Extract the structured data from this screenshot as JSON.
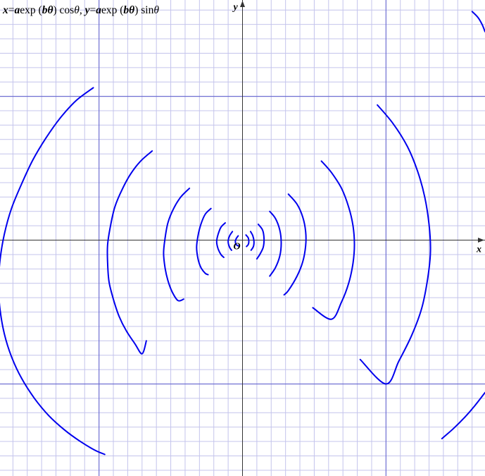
{
  "formula": {
    "x_var": "x",
    "eq": "=",
    "a1": "a",
    "exp1": "exp",
    "lp1": " (",
    "btheta1": "bθ",
    "rp1": ")",
    "cos": " cos",
    "theta1": "θ",
    "sep": ",",
    "y_var": "y",
    "a2": "a",
    "exp2": "exp",
    "lp2": " (",
    "btheta2": "bθ",
    "rp2": ")",
    "sin": " sin",
    "theta2": "θ"
  },
  "chart_data": {
    "type": "line",
    "title": "x= a exp (bθ) cos θ, y= a exp (bθ) sin θ",
    "xlabel": "x",
    "ylabel": "y",
    "origin_label": "O",
    "xlim": [
      -8.45,
      8.45
    ],
    "ylim": [
      -8.2,
      8.35
    ],
    "grid": true,
    "grid_minor_step": 0.5,
    "grid_major_step": 5,
    "line_color": "#0000ee",
    "grid_minor_color": "#c4c4ec",
    "grid_major_color": "#6f6fd2",
    "axis_color": "#333333",
    "note": "",
    "series": [
      {
        "arcs": [
          {
            "x": [
              -5.2,
              -5.8,
              -6.35,
              -6.85,
              -7.3,
              -7.7,
              -8.05,
              -8.3,
              -8.45,
              -8.5,
              -8.45,
              -8.3,
              -8.05,
              -7.7,
              -7.25,
              -6.75,
              -6.2,
              -5.65,
              -5.15,
              -4.8
            ],
            "y": [
              5.3,
              4.85,
              4.25,
              3.55,
              2.8,
              1.95,
              1.1,
              0.2,
              -0.7,
              -1.55,
              -2.4,
              -3.25,
              -4.05,
              -4.8,
              -5.5,
              -6.1,
              -6.6,
              -7.0,
              -7.3,
              -7.45
            ]
          },
          {
            "x": [
              -3.15,
              -3.55,
              -3.9,
              -4.2,
              -4.45,
              -4.6,
              -4.7,
              -4.7,
              -4.65,
              -4.5,
              -4.3,
              -4.05,
              -3.75,
              -3.5,
              -3.35
            ],
            "y": [
              3.1,
              2.75,
              2.3,
              1.75,
              1.15,
              0.5,
              -0.15,
              -0.8,
              -1.45,
              -2.05,
              -2.65,
              -3.15,
              -3.6,
              -3.95,
              -3.5
            ]
          },
          {
            "x": [
              -1.85,
              -2.15,
              -2.4,
              -2.6,
              -2.7,
              -2.75,
              -2.7,
              -2.6,
              -2.45,
              -2.25,
              -2.05
            ],
            "y": [
              1.8,
              1.5,
              1.1,
              0.6,
              0.05,
              -0.45,
              -0.95,
              -1.4,
              -1.8,
              -2.1,
              -2.05
            ]
          },
          {
            "x": [
              -1.1,
              -1.3,
              -1.45,
              -1.55,
              -1.6,
              -1.55,
              -1.45,
              -1.3,
              -1.2
            ],
            "y": [
              1.1,
              0.9,
              0.55,
              0.15,
              -0.25,
              -0.65,
              -0.95,
              -1.15,
              -1.2
            ]
          },
          {
            "x": [
              -0.6,
              -0.75,
              -0.85,
              -0.9,
              -0.85,
              -0.75,
              -0.65
            ],
            "y": [
              0.6,
              0.45,
              0.2,
              -0.05,
              -0.3,
              -0.5,
              -0.6
            ]
          },
          {
            "x": [
              -0.35,
              -0.45,
              -0.5,
              -0.45,
              -0.38
            ],
            "y": [
              0.3,
              0.15,
              -0.05,
              -0.25,
              -0.35
            ]
          },
          {
            "x": [
              -0.15,
              -0.22,
              -0.25,
              -0.22,
              -0.15
            ],
            "y": [
              0.15,
              0.05,
              -0.05,
              -0.15,
              -0.2
            ]
          },
          {
            "x": [
              0.12,
              0.2,
              0.22,
              0.2,
              0.14
            ],
            "y": [
              0.18,
              0.08,
              -0.05,
              -0.15,
              -0.22
            ]
          },
          {
            "x": [
              0.28,
              0.36,
              0.4,
              0.38,
              0.3
            ],
            "y": [
              0.3,
              0.15,
              -0.05,
              -0.22,
              -0.35
            ]
          },
          {
            "x": [
              0.55,
              0.7,
              0.75,
              0.72,
              0.6,
              0.5
            ],
            "y": [
              0.55,
              0.35,
              0.05,
              -0.25,
              -0.5,
              -0.65
            ]
          },
          {
            "x": [
              0.95,
              1.15,
              1.3,
              1.35,
              1.3,
              1.15,
              0.95
            ],
            "y": [
              1.0,
              0.75,
              0.35,
              -0.1,
              -0.55,
              -0.95,
              -1.25
            ]
          },
          {
            "x": [
              1.6,
              1.9,
              2.1,
              2.2,
              2.2,
              2.1,
              1.9,
              1.6,
              1.45
            ],
            "y": [
              1.6,
              1.25,
              0.8,
              0.3,
              -0.2,
              -0.75,
              -1.25,
              -1.75,
              -1.9
            ]
          },
          {
            "x": [
              2.75,
              3.1,
              3.45,
              3.7,
              3.85,
              3.9,
              3.85,
              3.7,
              3.45,
              3.1,
              2.45
            ],
            "y": [
              2.75,
              2.35,
              1.8,
              1.15,
              0.5,
              -0.15,
              -0.8,
              -1.5,
              -2.15,
              -2.75,
              -2.35
            ]
          },
          {
            "x": [
              4.7,
              5.25,
              5.75,
              6.1,
              6.35,
              6.5,
              6.55,
              6.45,
              6.25,
              5.9,
              5.45,
              5.0,
              4.1
            ],
            "y": [
              4.7,
              4.05,
              3.25,
              2.4,
              1.5,
              0.55,
              -0.4,
              -1.35,
              -2.35,
              -3.3,
              -4.2,
              -5.0,
              -4.15
            ]
          },
          {
            "x": [
              8.0,
              8.2,
              8.35,
              8.45
            ],
            "y": [
              7.95,
              7.75,
              7.5,
              7.25
            ]
          },
          {
            "x": [
              6.95,
              7.35,
              7.75,
              8.1,
              8.45
            ],
            "y": [
              -6.9,
              -6.55,
              -6.15,
              -5.75,
              -5.3
            ]
          }
        ]
      }
    ]
  }
}
